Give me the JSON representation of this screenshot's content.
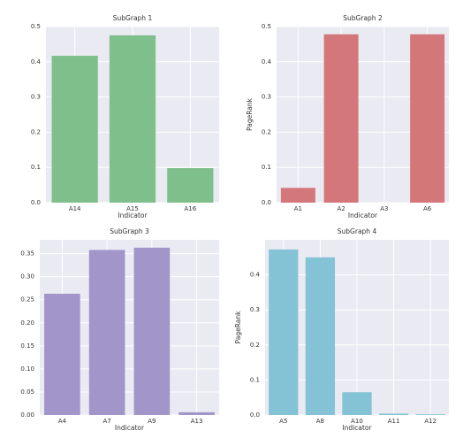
{
  "chart_data": [
    {
      "type": "bar",
      "title": "SubGraph 1",
      "xlabel": "Indicator",
      "categories": [
        "A14",
        "A15",
        "A16"
      ],
      "values": [
        0.417,
        0.475,
        0.098
      ],
      "color": "#7fbf8c",
      "ylim": [
        0,
        0.5
      ],
      "yticks": [
        {
          "value": 0,
          "label": "0.0"
        },
        0.1,
        0.2,
        0.3,
        0.4,
        0.5
      ],
      "grid": true
    },
    {
      "type": "bar",
      "title": "SubGraph 2",
      "xlabel": "Indicator",
      "ylabel": "PageRank",
      "categories": [
        "A1",
        "A2",
        "A3",
        "A6"
      ],
      "values": [
        0.042,
        0.478,
        0,
        0.478
      ],
      "color": "#d4777a",
      "ylim": [
        0,
        0.5
      ],
      "yticks": [
        {
          "value": 0,
          "label": "0.0"
        },
        0.1,
        0.2,
        0.3,
        0.4,
        0.5
      ],
      "grid": true
    },
    {
      "type": "bar",
      "title": "SubGraph 3",
      "xlabel": "Indicator",
      "categories": [
        "A4",
        "A7",
        "A9",
        "A13"
      ],
      "values": [
        0.263,
        0.358,
        0.363,
        0.006
      ],
      "color": "#a195c9",
      "ylim": [
        0,
        0.38
      ],
      "yticks": [
        {
          "value": 0,
          "label": "0.00"
        },
        0.05,
        {
          "value": 0.1,
          "label": "0.10"
        },
        0.15,
        {
          "value": 0.2,
          "label": "0.20"
        },
        0.25,
        {
          "value": 0.3,
          "label": "0.30"
        },
        0.35
      ],
      "grid": true
    },
    {
      "type": "bar",
      "title": "SubGraph 4",
      "xlabel": "Indicator",
      "ylabel": "PageRank",
      "categories": [
        "A5",
        "A8",
        "A10",
        "A11",
        "A12"
      ],
      "values": [
        0.4725,
        0.45,
        0.065,
        0.004,
        0.002
      ],
      "color": "#84c3d6",
      "ylim": [
        0,
        0.5
      ],
      "yticks": [
        {
          "value": 0,
          "label": "0.0"
        },
        0.1,
        0.2,
        0.3,
        0.4
      ],
      "grid": true
    }
  ]
}
